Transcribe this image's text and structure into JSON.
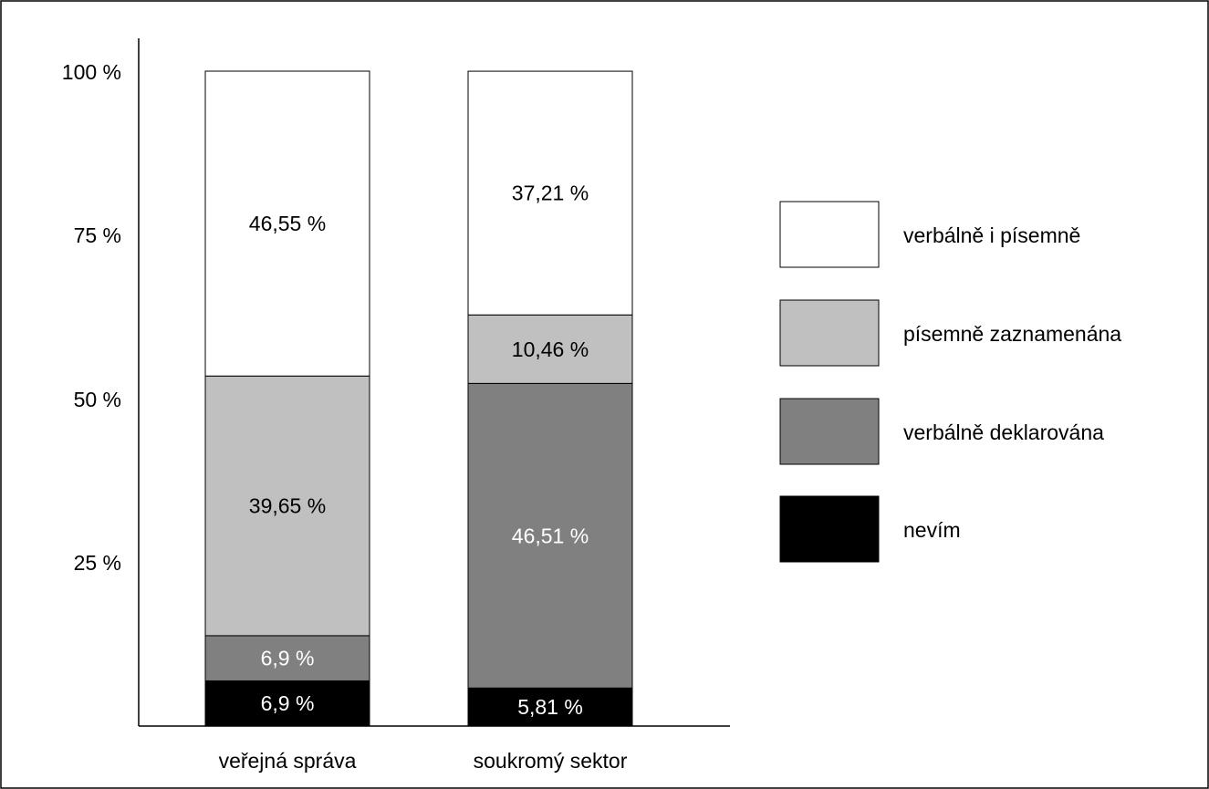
{
  "chart_data": {
    "type": "bar",
    "stacked": true,
    "categories": [
      "veřejná správa",
      "soukromý sektor"
    ],
    "y_ticks": [
      "100 %",
      "75 %",
      "50 %",
      "25 %"
    ],
    "ylim": [
      0,
      100
    ],
    "grid": false,
    "legend_position": "right",
    "series": [
      {
        "name": "nevím",
        "color": "#000000",
        "label_color": "#ffffff",
        "values": [
          6.9,
          5.81
        ],
        "labels": [
          "6,9 %",
          "5,81 %"
        ]
      },
      {
        "name": "verbálně deklarována",
        "color": "#808080",
        "label_color": "#ffffff",
        "values": [
          6.9,
          46.51
        ],
        "labels": [
          "6,9 %",
          "46,51 %"
        ]
      },
      {
        "name": "písemně zaznamenána",
        "color": "#c0c0c0",
        "label_color": "#000000",
        "values": [
          39.65,
          10.46
        ],
        "labels": [
          "39,65 %",
          "10,46 %"
        ]
      },
      {
        "name": "verbálně i písemně",
        "color": "#ffffff",
        "label_color": "#000000",
        "values": [
          46.55,
          37.21
        ],
        "labels": [
          "46,55 %",
          "37,21 %"
        ]
      }
    ],
    "legend_order": [
      "verbálně i písemně",
      "písemně zaznamenána",
      "verbálně deklarována",
      "nevím"
    ]
  }
}
